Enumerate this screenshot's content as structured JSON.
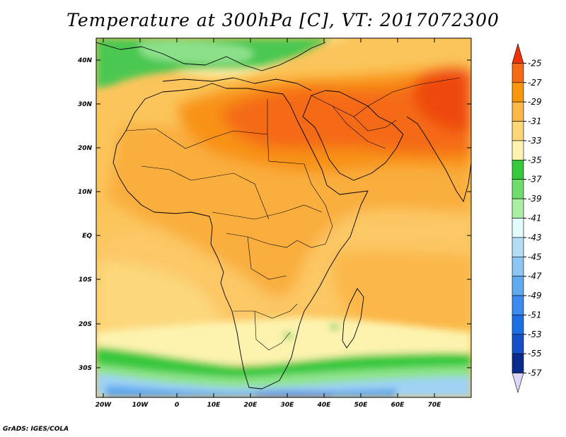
{
  "title": "Temperature at 300hPa [C], VT: 2017072300",
  "credit": "GrADS: IGES/COLA",
  "map": {
    "variable": "Temperature at 300hPa",
    "units": "C",
    "valid_time": "2017072300",
    "lon_range": [
      -22,
      80
    ],
    "lat_range": [
      -36,
      45
    ],
    "lat_ticks": [
      "40N",
      "30N",
      "20N",
      "10N",
      "EQ",
      "10S",
      "20S",
      "30S"
    ],
    "lon_ticks": [
      "20W",
      "10W",
      "0",
      "10E",
      "20E",
      "30E",
      "40E",
      "50E",
      "60E",
      "70E"
    ]
  },
  "colorbar": {
    "orientation": "vertical",
    "labels": [
      "-25",
      "-27",
      "-29",
      "-31",
      "-33",
      "-35",
      "-37",
      "-39",
      "-41",
      "-43",
      "-45",
      "-47",
      "-49",
      "-51",
      "-53",
      "-55",
      "-57"
    ],
    "colors": [
      "#f0320a",
      "#f56a14",
      "#f9960f",
      "#fbb748",
      "#fcd779",
      "#fdf3ae",
      "#38c83c",
      "#6fdc6c",
      "#aaf0a4",
      "#e2fbfd",
      "#b4dcf5",
      "#8cc6f3",
      "#60aaf0",
      "#3c8cf0",
      "#1e6ee4",
      "#1450c8",
      "#0a2a8c",
      "#0c0a60"
    ],
    "end_arrows": true
  }
}
